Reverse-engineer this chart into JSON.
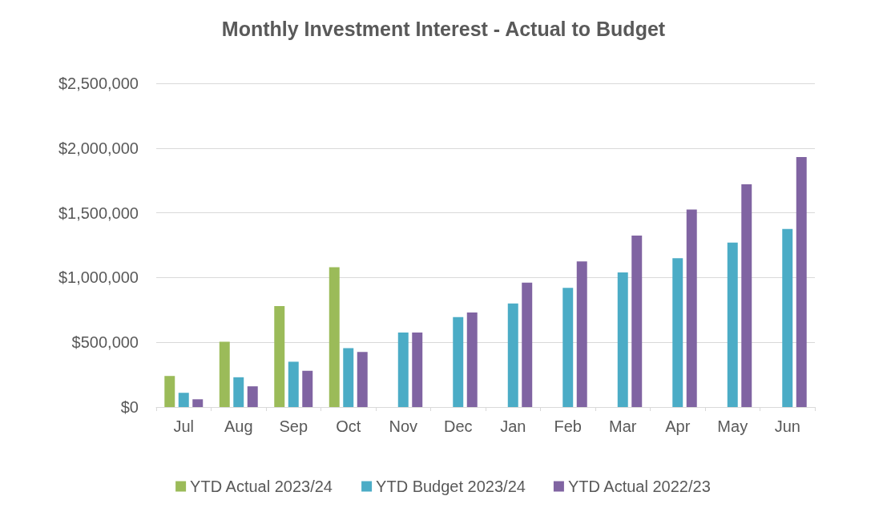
{
  "chart_data": {
    "type": "bar",
    "title": "Monthly Investment Interest - Actual to Budget",
    "categories": [
      "Jul",
      "Aug",
      "Sep",
      "Oct",
      "Nov",
      "Dec",
      "Jan",
      "Feb",
      "Mar",
      "Apr",
      "May",
      "Jun"
    ],
    "series": [
      {
        "name": "YTD Actual 2023/24",
        "color": "#9bbb59",
        "values": [
          240000,
          505000,
          780000,
          1080000,
          null,
          null,
          null,
          null,
          null,
          null,
          null,
          null
        ]
      },
      {
        "name": "YTD Budget 2023/24",
        "color": "#4bacc6",
        "values": [
          110000,
          230000,
          350000,
          455000,
          575000,
          695000,
          800000,
          920000,
          1040000,
          1150000,
          1270000,
          1375000
        ]
      },
      {
        "name": "YTD Actual 2022/23",
        "color": "#8064a2",
        "values": [
          60000,
          160000,
          280000,
          425000,
          575000,
          730000,
          960000,
          1125000,
          1325000,
          1525000,
          1720000,
          1930000
        ]
      }
    ],
    "ylim": [
      0,
      2500000
    ],
    "yticks": [
      {
        "value": 0,
        "label": "$0"
      },
      {
        "value": 500000,
        "label": "$500,000"
      },
      {
        "value": 1000000,
        "label": "$1,000,000"
      },
      {
        "value": 1500000,
        "label": "$1,500,000"
      },
      {
        "value": 2000000,
        "label": "$2,000,000"
      },
      {
        "value": 2500000,
        "label": "$2,500,000"
      }
    ],
    "grid": "y",
    "legend": "bottom"
  }
}
